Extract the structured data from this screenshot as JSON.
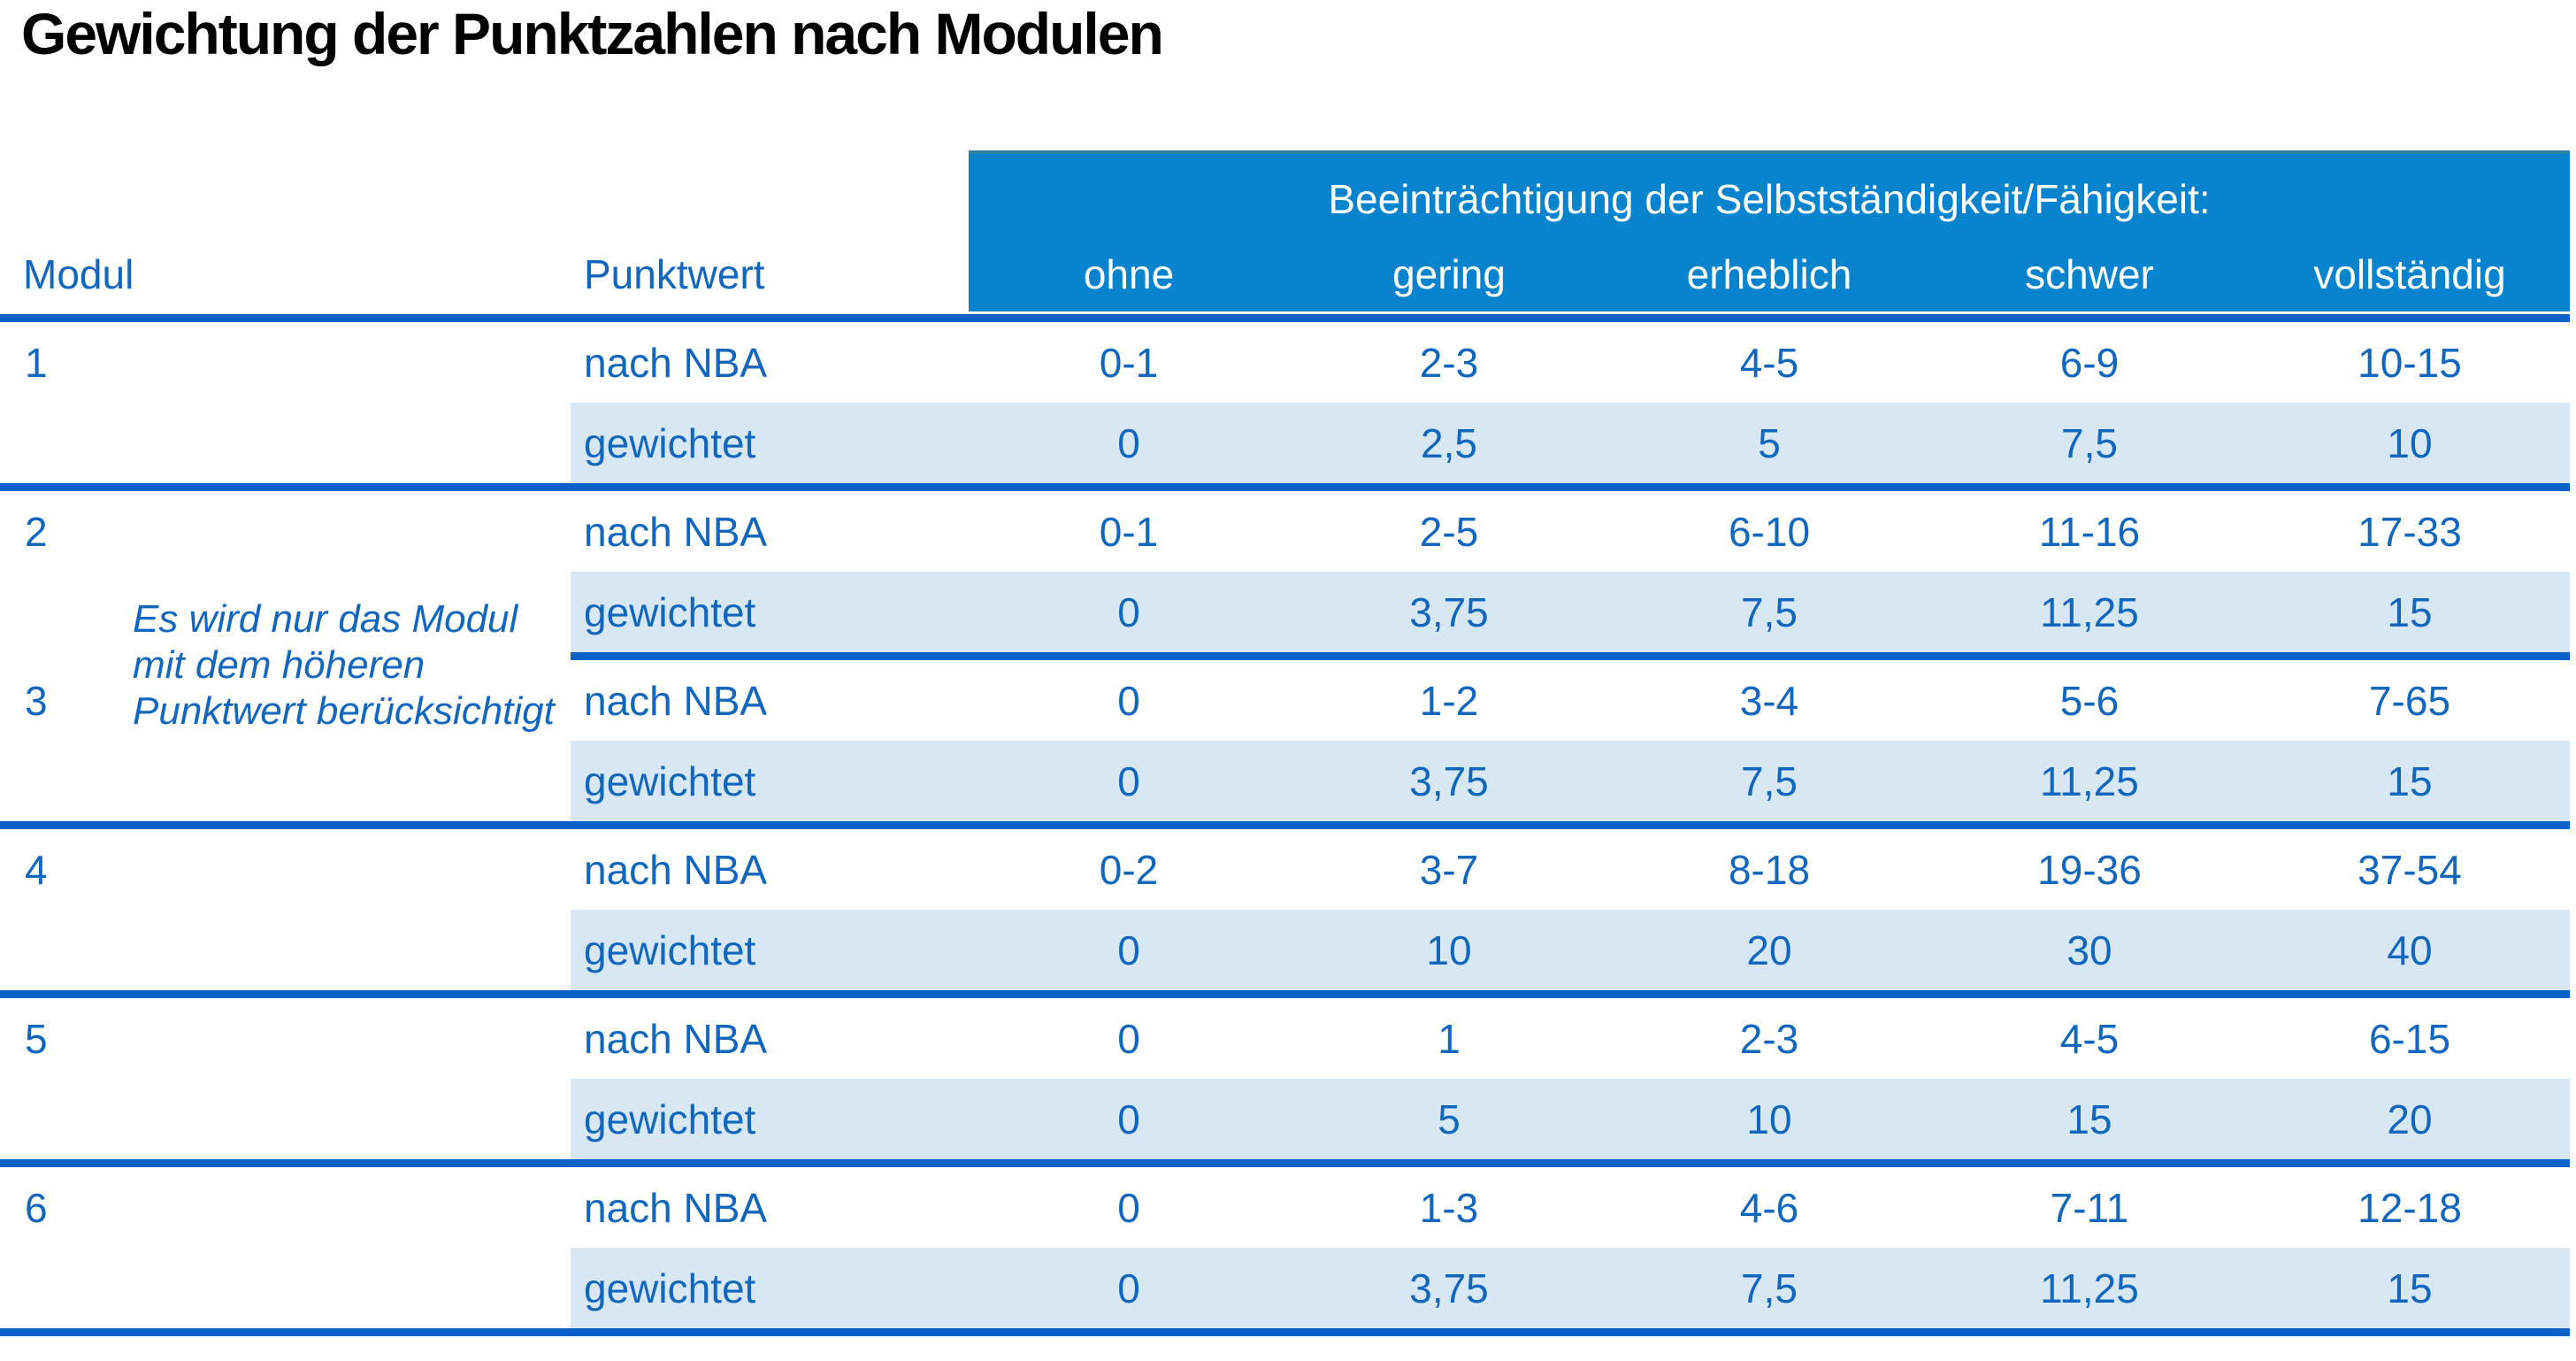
{
  "title": "Gewichtung der Punktzahlen nach Modulen",
  "labels": {
    "modul": "Modul",
    "punktwert": "Punktwert",
    "nba": "nach NBA",
    "weighted": "gewichtet"
  },
  "table": {
    "group_header": "Beeinträchtigung der Selbstständigkeit/Fähigkeit:",
    "severity_levels": [
      "ohne",
      "gering",
      "erheblich",
      "schwer",
      "vollständig"
    ],
    "note": [
      "Es wird nur das Modul",
      "mit dem höheren",
      "Punktwert berücksichtigt"
    ],
    "modules": [
      {
        "id": "1",
        "nba": [
          "0-1",
          "2-3",
          "4-5",
          "6-9",
          "10-15"
        ],
        "weighted": [
          "0",
          "2,5",
          "5",
          "7,5",
          "10"
        ]
      },
      {
        "id": "2",
        "nba": [
          "0-1",
          "2-5",
          "6-10",
          "11-16",
          "17-33"
        ],
        "weighted": [
          "0",
          "3,75",
          "7,5",
          "11,25",
          "15"
        ]
      },
      {
        "id": "3",
        "nba": [
          "0",
          "1-2",
          "3-4",
          "5-6",
          "7-65"
        ],
        "weighted": [
          "0",
          "3,75",
          "7,5",
          "11,25",
          "15"
        ]
      },
      {
        "id": "4",
        "nba": [
          "0-2",
          "3-7",
          "8-18",
          "19-36",
          "37-54"
        ],
        "weighted": [
          "0",
          "10",
          "20",
          "30",
          "40"
        ]
      },
      {
        "id": "5",
        "nba": [
          "0",
          "1",
          "2-3",
          "4-5",
          "6-15"
        ],
        "weighted": [
          "0",
          "5",
          "10",
          "15",
          "20"
        ]
      },
      {
        "id": "6",
        "nba": [
          "0",
          "1-3",
          "4-6",
          "7-11",
          "12-18"
        ],
        "weighted": [
          "0",
          "3,75",
          "7,5",
          "11,25",
          "15"
        ]
      }
    ]
  },
  "colors": {
    "header_blue": "#0883CE",
    "header_top_edge": "#2B80A4",
    "divider_blue": "#0A62C8",
    "text_blue": "#1166BE",
    "row_light_blue": "#D7E7F4",
    "header_text": "#FFFFFF",
    "title_text": "#000000"
  }
}
